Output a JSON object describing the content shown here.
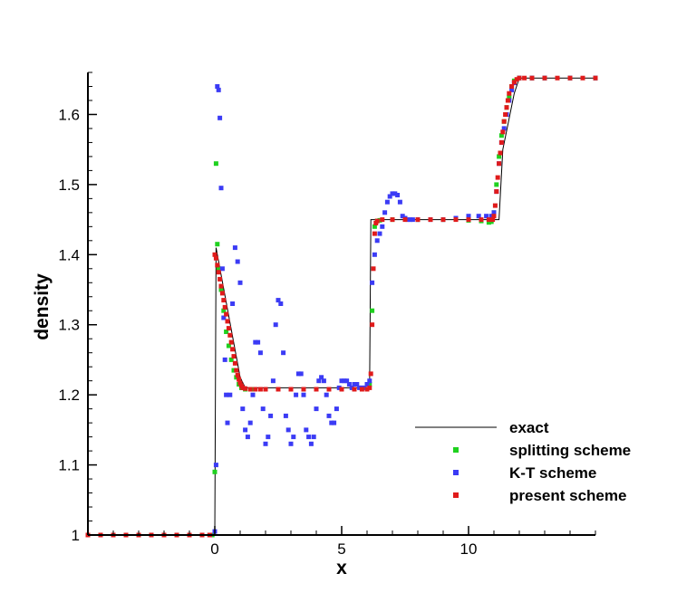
{
  "chart_data": {
    "type": "scatter",
    "title": "",
    "xlabel": "x",
    "ylabel": "density",
    "xlim": [
      -5,
      15
    ],
    "ylim": [
      1.0,
      1.66
    ],
    "x_ticks": [
      0,
      5,
      10
    ],
    "x_tick_labels": [
      "0",
      "5",
      "10"
    ],
    "y_ticks": [
      1.0,
      1.1,
      1.2,
      1.3,
      1.4,
      1.5,
      1.6
    ],
    "y_tick_labels": [
      "1",
      "1.1",
      "1.2",
      "1.3",
      "1.4",
      "1.5",
      "1.6"
    ],
    "grid": false,
    "legend_position": "bottom-right",
    "series": [
      {
        "name": "exact",
        "style": "line",
        "color": "#000000",
        "x": [
          -5,
          0.0,
          0.05,
          1.0,
          1.2,
          6.1,
          6.15,
          6.25,
          11.2,
          11.35,
          11.8,
          12.0,
          15
        ],
        "y": [
          1.0,
          1.0,
          1.41,
          1.225,
          1.21,
          1.21,
          1.45,
          1.45,
          1.45,
          1.55,
          1.63,
          1.652,
          1.652
        ]
      },
      {
        "name": "splitting scheme",
        "style": "markers",
        "color": "#1fd11f",
        "x": [
          -5,
          -4,
          -3,
          -2,
          -1,
          -0.2,
          -0.1,
          0.0,
          0.05,
          0.1,
          0.15,
          0.25,
          0.35,
          0.45,
          0.55,
          0.65,
          0.75,
          0.85,
          0.95,
          1.05,
          1.2,
          1.5,
          2,
          3,
          4,
          5,
          5.5,
          6,
          6.1,
          6.2,
          6.3,
          6.4,
          6.5,
          7,
          8,
          9,
          10,
          10.5,
          10.8,
          10.9,
          11.0,
          11.1,
          11.2,
          11.3,
          11.4,
          11.5,
          11.6,
          11.7,
          11.8,
          12.0,
          12.5,
          13,
          14,
          15
        ],
        "y": [
          1.0,
          1.0,
          1.0,
          1.0,
          1.0,
          1.0,
          1.0,
          1.09,
          1.53,
          1.415,
          1.38,
          1.35,
          1.32,
          1.29,
          1.27,
          1.25,
          1.235,
          1.225,
          1.215,
          1.21,
          1.208,
          1.208,
          1.208,
          1.208,
          1.208,
          1.208,
          1.208,
          1.208,
          1.215,
          1.32,
          1.44,
          1.448,
          1.449,
          1.45,
          1.45,
          1.45,
          1.449,
          1.448,
          1.446,
          1.447,
          1.46,
          1.5,
          1.54,
          1.57,
          1.59,
          1.61,
          1.625,
          1.64,
          1.648,
          1.652,
          1.652,
          1.652,
          1.652,
          1.652
        ]
      },
      {
        "name": "K-T scheme",
        "style": "markers",
        "color": "#3b3bf5",
        "x": [
          -5,
          -4,
          -3,
          -2,
          -1,
          -0.2,
          0.0,
          0.05,
          0.1,
          0.15,
          0.2,
          0.25,
          0.3,
          0.35,
          0.4,
          0.45,
          0.5,
          0.6,
          0.7,
          0.8,
          0.9,
          1.0,
          1.1,
          1.2,
          1.3,
          1.4,
          1.5,
          1.6,
          1.7,
          1.8,
          1.9,
          2.0,
          2.1,
          2.2,
          2.3,
          2.4,
          2.5,
          2.6,
          2.7,
          2.8,
          2.9,
          3.0,
          3.1,
          3.2,
          3.3,
          3.4,
          3.5,
          3.6,
          3.7,
          3.8,
          3.9,
          4.0,
          4.1,
          4.2,
          4.3,
          4.4,
          4.5,
          4.6,
          4.7,
          4.8,
          4.9,
          5.0,
          5.1,
          5.2,
          5.3,
          5.4,
          5.5,
          5.6,
          5.7,
          5.8,
          5.9,
          6.0,
          6.1,
          6.2,
          6.3,
          6.4,
          6.5,
          6.6,
          6.7,
          6.8,
          6.9,
          7.0,
          7.1,
          7.2,
          7.3,
          7.4,
          7.5,
          7.6,
          7.7,
          7.8,
          8,
          8.5,
          9,
          9.5,
          10,
          10.4,
          10.7,
          10.9,
          11.0,
          11.1,
          11.2,
          11.3,
          11.4,
          11.5,
          11.6,
          11.7,
          11.8,
          12.0,
          12.5,
          13,
          14,
          15
        ],
        "y": [
          1.0,
          1.0,
          1.0,
          1.0,
          1.0,
          1.0,
          1.005,
          1.1,
          1.64,
          1.635,
          1.595,
          1.495,
          1.38,
          1.31,
          1.25,
          1.2,
          1.16,
          1.2,
          1.33,
          1.41,
          1.39,
          1.36,
          1.18,
          1.15,
          1.14,
          1.16,
          1.2,
          1.275,
          1.275,
          1.26,
          1.18,
          1.13,
          1.14,
          1.17,
          1.22,
          1.3,
          1.335,
          1.33,
          1.26,
          1.17,
          1.15,
          1.13,
          1.14,
          1.2,
          1.23,
          1.23,
          1.2,
          1.15,
          1.14,
          1.13,
          1.14,
          1.18,
          1.22,
          1.225,
          1.22,
          1.2,
          1.17,
          1.16,
          1.16,
          1.18,
          1.21,
          1.22,
          1.22,
          1.22,
          1.215,
          1.21,
          1.215,
          1.215,
          1.21,
          1.21,
          1.21,
          1.215,
          1.22,
          1.36,
          1.4,
          1.42,
          1.43,
          1.44,
          1.46,
          1.475,
          1.483,
          1.487,
          1.487,
          1.485,
          1.475,
          1.455,
          1.452,
          1.45,
          1.45,
          1.45,
          1.45,
          1.45,
          1.45,
          1.452,
          1.455,
          1.455,
          1.455,
          1.455,
          1.46,
          1.49,
          1.53,
          1.56,
          1.58,
          1.6,
          1.62,
          1.635,
          1.645,
          1.652,
          1.652,
          1.652,
          1.652,
          1.652
        ]
      },
      {
        "name": "present scheme",
        "style": "markers",
        "color": "#e01b1b",
        "x": [
          -5,
          -4.5,
          -4,
          -3.5,
          -3,
          -2.5,
          -2,
          -1.5,
          -1,
          -0.5,
          -0.2,
          0.0,
          0.05,
          0.1,
          0.15,
          0.2,
          0.25,
          0.3,
          0.35,
          0.4,
          0.45,
          0.5,
          0.55,
          0.6,
          0.65,
          0.7,
          0.75,
          0.8,
          0.85,
          0.9,
          0.95,
          1.0,
          1.05,
          1.1,
          1.2,
          1.4,
          1.6,
          1.8,
          2.0,
          2.5,
          3.0,
          3.5,
          4.0,
          4.5,
          5.0,
          5.5,
          5.8,
          6.0,
          6.1,
          6.15,
          6.2,
          6.25,
          6.3,
          6.35,
          6.4,
          6.6,
          7.0,
          7.5,
          8.0,
          8.5,
          9.0,
          9.5,
          10.0,
          10.5,
          10.8,
          10.95,
          11.0,
          11.05,
          11.1,
          11.15,
          11.2,
          11.25,
          11.3,
          11.35,
          11.4,
          11.45,
          11.5,
          11.55,
          11.6,
          11.7,
          11.8,
          11.9,
          12.0,
          12.2,
          12.5,
          13.0,
          13.5,
          14.0,
          14.5,
          15
        ],
        "y": [
          1.0,
          1.0,
          1.0,
          1.0,
          1.0,
          1.0,
          1.0,
          1.0,
          1.0,
          1.0,
          1.0,
          1.4,
          1.395,
          1.385,
          1.375,
          1.365,
          1.355,
          1.345,
          1.335,
          1.325,
          1.315,
          1.305,
          1.295,
          1.285,
          1.275,
          1.265,
          1.255,
          1.245,
          1.235,
          1.228,
          1.222,
          1.217,
          1.213,
          1.21,
          1.209,
          1.208,
          1.208,
          1.208,
          1.208,
          1.208,
          1.208,
          1.208,
          1.208,
          1.208,
          1.208,
          1.208,
          1.208,
          1.208,
          1.21,
          1.23,
          1.3,
          1.38,
          1.43,
          1.445,
          1.448,
          1.45,
          1.45,
          1.45,
          1.45,
          1.45,
          1.45,
          1.45,
          1.45,
          1.45,
          1.45,
          1.45,
          1.455,
          1.47,
          1.49,
          1.51,
          1.53,
          1.545,
          1.56,
          1.575,
          1.59,
          1.6,
          1.61,
          1.62,
          1.63,
          1.64,
          1.646,
          1.65,
          1.652,
          1.652,
          1.652,
          1.652,
          1.652,
          1.652,
          1.652,
          1.652
        ]
      }
    ]
  }
}
